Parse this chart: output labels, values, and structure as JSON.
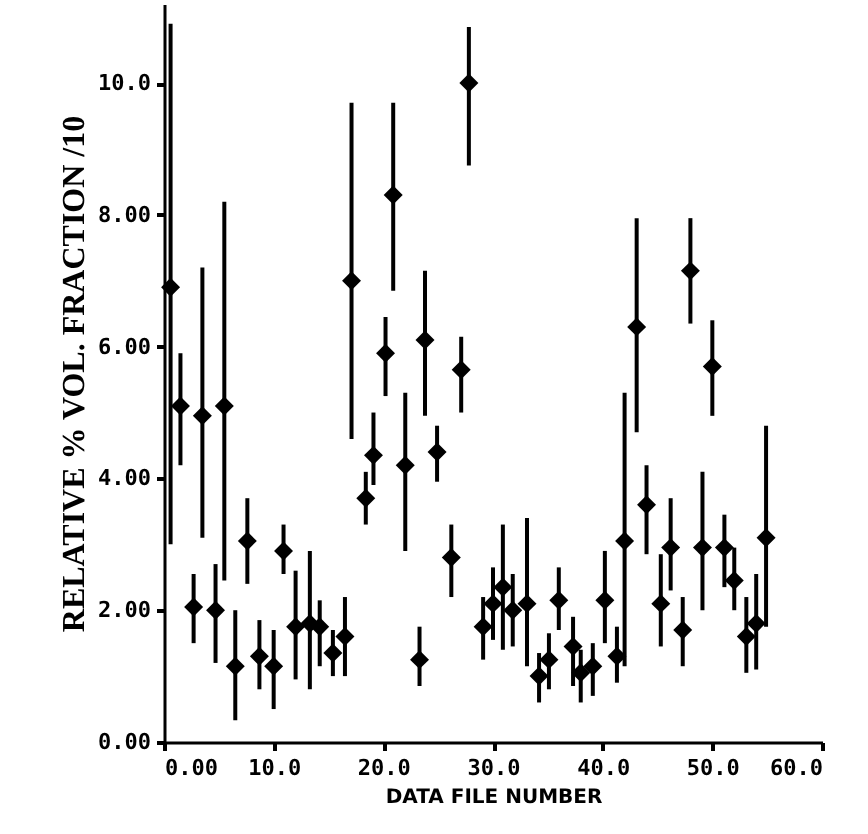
{
  "chart_data": {
    "type": "scatter",
    "xlabel": "DATA FILE NUMBER",
    "ylabel": "RELATIVE % VOL. FRACTION /10",
    "xlim": [
      0,
      60
    ],
    "ylim": [
      0,
      11.2
    ],
    "xticks": [
      {
        "value": 0,
        "label": "0.00"
      },
      {
        "value": 10,
        "label": "10.0"
      },
      {
        "value": 20,
        "label": "20.0"
      },
      {
        "value": 30,
        "label": "30.0"
      },
      {
        "value": 40,
        "label": "40.0"
      },
      {
        "value": 50,
        "label": "50.0"
      },
      {
        "value": 60,
        "label": "60.0"
      }
    ],
    "yticks": [
      {
        "value": 0,
        "label": "0.00"
      },
      {
        "value": 2,
        "label": "2.00"
      },
      {
        "value": 4,
        "label": "4.00"
      },
      {
        "value": 6,
        "label": "6.00"
      },
      {
        "value": 8,
        "label": "8.00"
      },
      {
        "value": 10,
        "label": "10.0"
      }
    ],
    "marker": "diamond",
    "grid": false,
    "x": [
      0.6,
      1.5,
      2.7,
      3.5,
      4.7,
      5.5,
      6.5,
      7.6,
      8.7,
      10,
      10.9,
      12,
      13.3,
      14.2,
      15.4,
      16.5,
      17.1,
      18.4,
      19.1,
      20.2,
      20.9,
      22,
      23.3,
      23.8,
      24.9,
      26.2,
      27.1,
      27.8,
      29.1,
      30,
      30.9,
      31.8,
      33.1,
      34.2,
      35.1,
      36,
      37.3,
      38,
      39.1,
      40.2,
      41.3,
      42,
      43.1,
      44,
      45.3,
      46.2,
      47.3,
      48,
      49.1,
      50,
      51.1,
      52,
      53.1,
      54,
      54.9
    ],
    "series": [
      {
        "color": "#000000",
        "values": [
          6.9,
          5.1,
          2.05,
          4.95,
          2.0,
          5.1,
          1.15,
          3.05,
          1.3,
          1.15,
          2.9,
          1.75,
          1.8,
          1.75,
          1.35,
          1.6,
          7.0,
          3.7,
          4.35,
          5.9,
          8.3,
          4.2,
          1.25,
          6.1,
          4.4,
          2.8,
          5.65,
          10.0,
          1.75,
          2.1,
          2.35,
          2.0,
          2.1,
          1.0,
          1.25,
          2.15,
          1.45,
          1.05,
          1.15,
          2.15,
          1.3,
          3.05,
          6.3,
          3.6,
          2.1,
          2.95,
          1.7,
          7.15,
          2.95,
          5.7,
          2.95,
          2.45,
          1.6,
          1.8,
          3.1
        ],
        "errors": [
          [
            3.0,
            10.9
          ],
          [
            4.2,
            5.9
          ],
          [
            1.5,
            2.55
          ],
          [
            3.1,
            7.2
          ],
          [
            1.2,
            2.7
          ],
          [
            2.45,
            8.2
          ],
          [
            0.33,
            2.0
          ],
          [
            2.4,
            3.7
          ],
          [
            0.8,
            1.85
          ],
          [
            0.5,
            1.7
          ],
          [
            2.55,
            3.3
          ],
          [
            0.95,
            2.6
          ],
          [
            0.8,
            2.9
          ],
          [
            1.15,
            2.15
          ],
          [
            1.0,
            1.7
          ],
          [
            1.0,
            2.2
          ],
          [
            4.6,
            9.7
          ],
          [
            3.3,
            4.1
          ],
          [
            3.9,
            5.0
          ],
          [
            5.25,
            6.45
          ],
          [
            6.85,
            9.7
          ],
          [
            2.9,
            5.3
          ],
          [
            0.85,
            1.75
          ],
          [
            4.95,
            7.15
          ],
          [
            3.95,
            4.8
          ],
          [
            2.2,
            3.3
          ],
          [
            5.0,
            6.15
          ],
          [
            8.75,
            10.85
          ],
          [
            1.25,
            2.2
          ],
          [
            1.55,
            2.65
          ],
          [
            1.4,
            3.3
          ],
          [
            1.45,
            2.55
          ],
          [
            1.15,
            3.4
          ],
          [
            0.6,
            1.35
          ],
          [
            0.8,
            1.65
          ],
          [
            1.7,
            2.65
          ],
          [
            0.85,
            1.9
          ],
          [
            0.6,
            1.4
          ],
          [
            0.7,
            1.5
          ],
          [
            1.5,
            2.9
          ],
          [
            0.9,
            1.75
          ],
          [
            1.15,
            5.3
          ],
          [
            4.7,
            7.95
          ],
          [
            2.85,
            4.2
          ],
          [
            1.45,
            2.85
          ],
          [
            2.3,
            3.7
          ],
          [
            1.15,
            2.2
          ],
          [
            6.35,
            7.95
          ],
          [
            2.0,
            4.1
          ],
          [
            4.95,
            6.4
          ],
          [
            2.35,
            3.45
          ],
          [
            2.0,
            2.95
          ],
          [
            1.05,
            2.2
          ],
          [
            1.1,
            2.55
          ],
          [
            1.75,
            4.8
          ]
        ]
      }
    ]
  }
}
